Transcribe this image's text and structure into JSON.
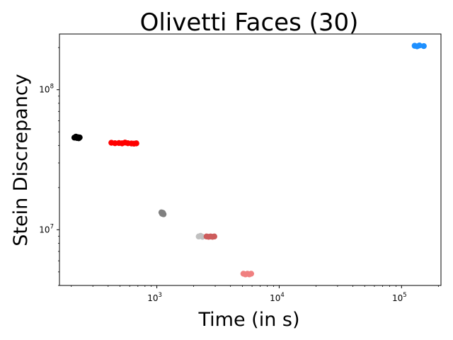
{
  "chart_data": {
    "type": "scatter",
    "title": "Olivetti Faces (30)",
    "xlabel": "Time (in s)",
    "ylabel": "Stein Discrepancy",
    "xscale": "log",
    "yscale": "log",
    "xlim": [
      160,
      210000
    ],
    "ylim": [
      4000000,
      250000000
    ],
    "x_major_ticks": [
      {
        "value": 1000,
        "base": "10",
        "exp": "3"
      },
      {
        "value": 10000,
        "base": "10",
        "exp": "4"
      },
      {
        "value": 100000,
        "base": "10",
        "exp": "5"
      }
    ],
    "y_major_ticks": [
      {
        "value": 10000000,
        "base": "10",
        "exp": "7"
      },
      {
        "value": 100000000,
        "base": "10",
        "exp": "8"
      }
    ],
    "grid": false,
    "legend": "none",
    "series": [
      {
        "color": "#000000",
        "x": [
          212,
          218,
          222,
          226,
          230,
          234
        ],
        "y": [
          45500000,
          46200000,
          45200000,
          45800000,
          45000000,
          45600000
        ]
      },
      {
        "color": "#ff0000",
        "x": [
          425,
          455,
          490,
          520,
          550,
          580,
          620,
          650,
          680
        ],
        "y": [
          41800000,
          41500000,
          41600000,
          41400000,
          41900000,
          41500000,
          41300000,
          41200000,
          41400000
        ]
      },
      {
        "color": "#808080",
        "x": [
          1090,
          1105,
          1120,
          1135
        ],
        "y": [
          13300000,
          13000000,
          13200000,
          12900000
        ]
      },
      {
        "color": "#c0c0c0",
        "x": [
          2200,
          2280,
          2360
        ],
        "y": [
          8950000,
          9050000,
          8900000
        ]
      },
      {
        "color": "#cd5c5c",
        "x": [
          2550,
          2650,
          2750,
          2850,
          2950
        ],
        "y": [
          8950000,
          8900000,
          8950000,
          8900000,
          8950000
        ]
      },
      {
        "color": "#f08080",
        "x": [
          5100,
          5300,
          5500,
          5700,
          5900
        ],
        "y": [
          4850000,
          4800000,
          4850000,
          4800000,
          4850000
        ]
      },
      {
        "color": "#1e90ff",
        "x": [
          128000,
          134000,
          140000,
          152000
        ],
        "y": [
          206000000,
          204000000,
          207000000,
          205000000
        ]
      }
    ]
  }
}
